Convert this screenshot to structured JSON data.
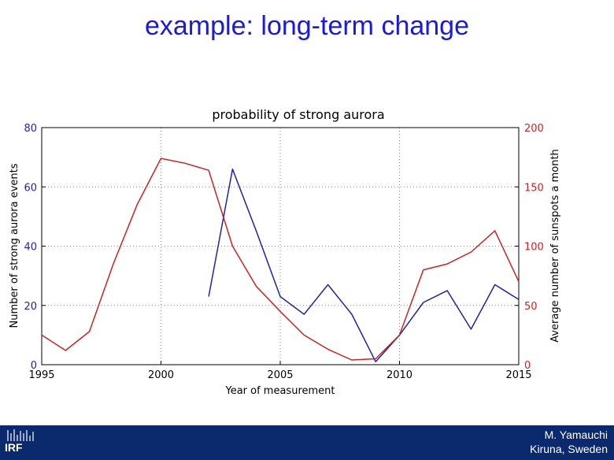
{
  "slide": {
    "title": "example: long-term change"
  },
  "footer": {
    "logo_text": "IRF",
    "author_line1": "M. Yamauchi",
    "author_line2": "Kiruna, Sweden"
  },
  "colors": {
    "title": "#1a1adc",
    "aurora_series": "#2222aa",
    "sunspot_series": "#cc2222",
    "footer_bg": "#0b2a6e"
  },
  "chart_data": {
    "type": "line",
    "title": "probability of strong aurora",
    "xlabel": "Year of measurement",
    "ylabel_left": "Number of strong aurora events",
    "ylabel_right": "Average number of sunspots a month",
    "xlim": [
      1995,
      2015
    ],
    "ylim_left": [
      0,
      80
    ],
    "ylim_right": [
      0,
      200
    ],
    "x_ticks": [
      "1995",
      "2000",
      "2005",
      "2010",
      "2015"
    ],
    "y_ticks_left": [
      "0",
      "20",
      "40",
      "60",
      "80"
    ],
    "y_ticks_right": [
      "0",
      "50",
      "100",
      "150",
      "200"
    ],
    "grid": true,
    "series": [
      {
        "axis": "left",
        "color": "#2222aa",
        "x": [
          2002,
          2003,
          2004,
          2005,
          2006,
          2007,
          2008,
          2009,
          2010,
          2011,
          2012,
          2013,
          2014,
          2015
        ],
        "y": [
          23,
          66,
          45,
          23,
          17,
          27,
          17,
          1,
          10,
          21,
          25,
          12,
          27,
          22
        ]
      },
      {
        "axis": "right",
        "color": "#cc2222",
        "x": [
          1995,
          1996,
          1997,
          1998,
          1999,
          2000,
          2001,
          2002,
          2003,
          2004,
          2005,
          2006,
          2007,
          2008,
          2009,
          2010,
          2011,
          2012,
          2013,
          2014,
          2015
        ],
        "y": [
          25,
          12,
          28,
          85,
          135,
          174,
          170,
          164,
          100,
          66,
          45,
          25,
          13,
          4,
          5,
          25,
          80,
          85,
          95,
          113,
          70
        ]
      }
    ]
  }
}
